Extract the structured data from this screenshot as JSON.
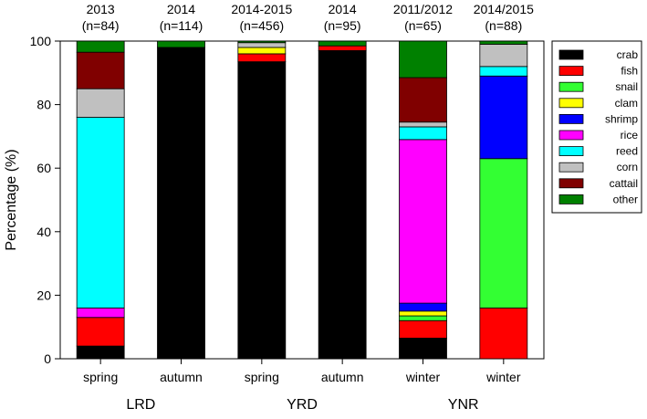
{
  "chart_data": {
    "type": "bar",
    "stacked": true,
    "ylabel": "Percentage (%)",
    "ylim": [
      0,
      100
    ],
    "yticks": [
      0,
      20,
      40,
      60,
      80,
      100
    ],
    "grid": false,
    "legend_position": "right",
    "categories": [
      "spring",
      "autumn",
      "spring",
      "autumn",
      "winter",
      "winter"
    ],
    "top_labels": [
      {
        "year": "2013",
        "n": "(n=84)"
      },
      {
        "year": "2014",
        "n": "(n=114)"
      },
      {
        "year": "2014-2015",
        "n": "(n=456)"
      },
      {
        "year": "2014",
        "n": "(n=95)"
      },
      {
        "year": "2011/2012",
        "n": "(n=65)"
      },
      {
        "year": "2014/2015",
        "n": "(n=88)"
      }
    ],
    "groups": [
      {
        "label": "LRD",
        "categories": [
          0,
          1
        ]
      },
      {
        "label": "YRD",
        "categories": [
          2,
          3
        ]
      },
      {
        "label": "YNR",
        "categories": [
          4,
          5
        ]
      }
    ],
    "series": [
      {
        "name": "crab",
        "color": "#000000",
        "values": [
          4,
          98,
          93.5,
          97,
          6.5,
          0
        ]
      },
      {
        "name": "fish",
        "color": "#ff0000",
        "values": [
          9,
          0,
          2.5,
          1.5,
          5.5,
          16
        ]
      },
      {
        "name": "snail",
        "color": "#33ff33",
        "values": [
          0,
          0,
          0,
          0,
          1.5,
          47
        ]
      },
      {
        "name": "clam",
        "color": "#ffff00",
        "values": [
          0,
          0,
          2,
          0,
          1.5,
          0
        ]
      },
      {
        "name": "shrimp",
        "color": "#0000ff",
        "values": [
          0,
          0,
          0,
          0,
          2.5,
          26
        ]
      },
      {
        "name": "rice",
        "color": "#ff00ff",
        "values": [
          3,
          0,
          0,
          0,
          51.5,
          0
        ]
      },
      {
        "name": "reed",
        "color": "#00ffff",
        "values": [
          60,
          0,
          0,
          0,
          4,
          3
        ]
      },
      {
        "name": "corn",
        "color": "#c0c0c0",
        "values": [
          9,
          0,
          1.5,
          0,
          1.5,
          7
        ]
      },
      {
        "name": "cattail",
        "color": "#800000",
        "values": [
          11.5,
          0,
          0,
          0,
          14,
          0
        ]
      },
      {
        "name": "other",
        "color": "#008000",
        "values": [
          3.5,
          2,
          0.5,
          1.5,
          11.5,
          1
        ]
      }
    ]
  }
}
